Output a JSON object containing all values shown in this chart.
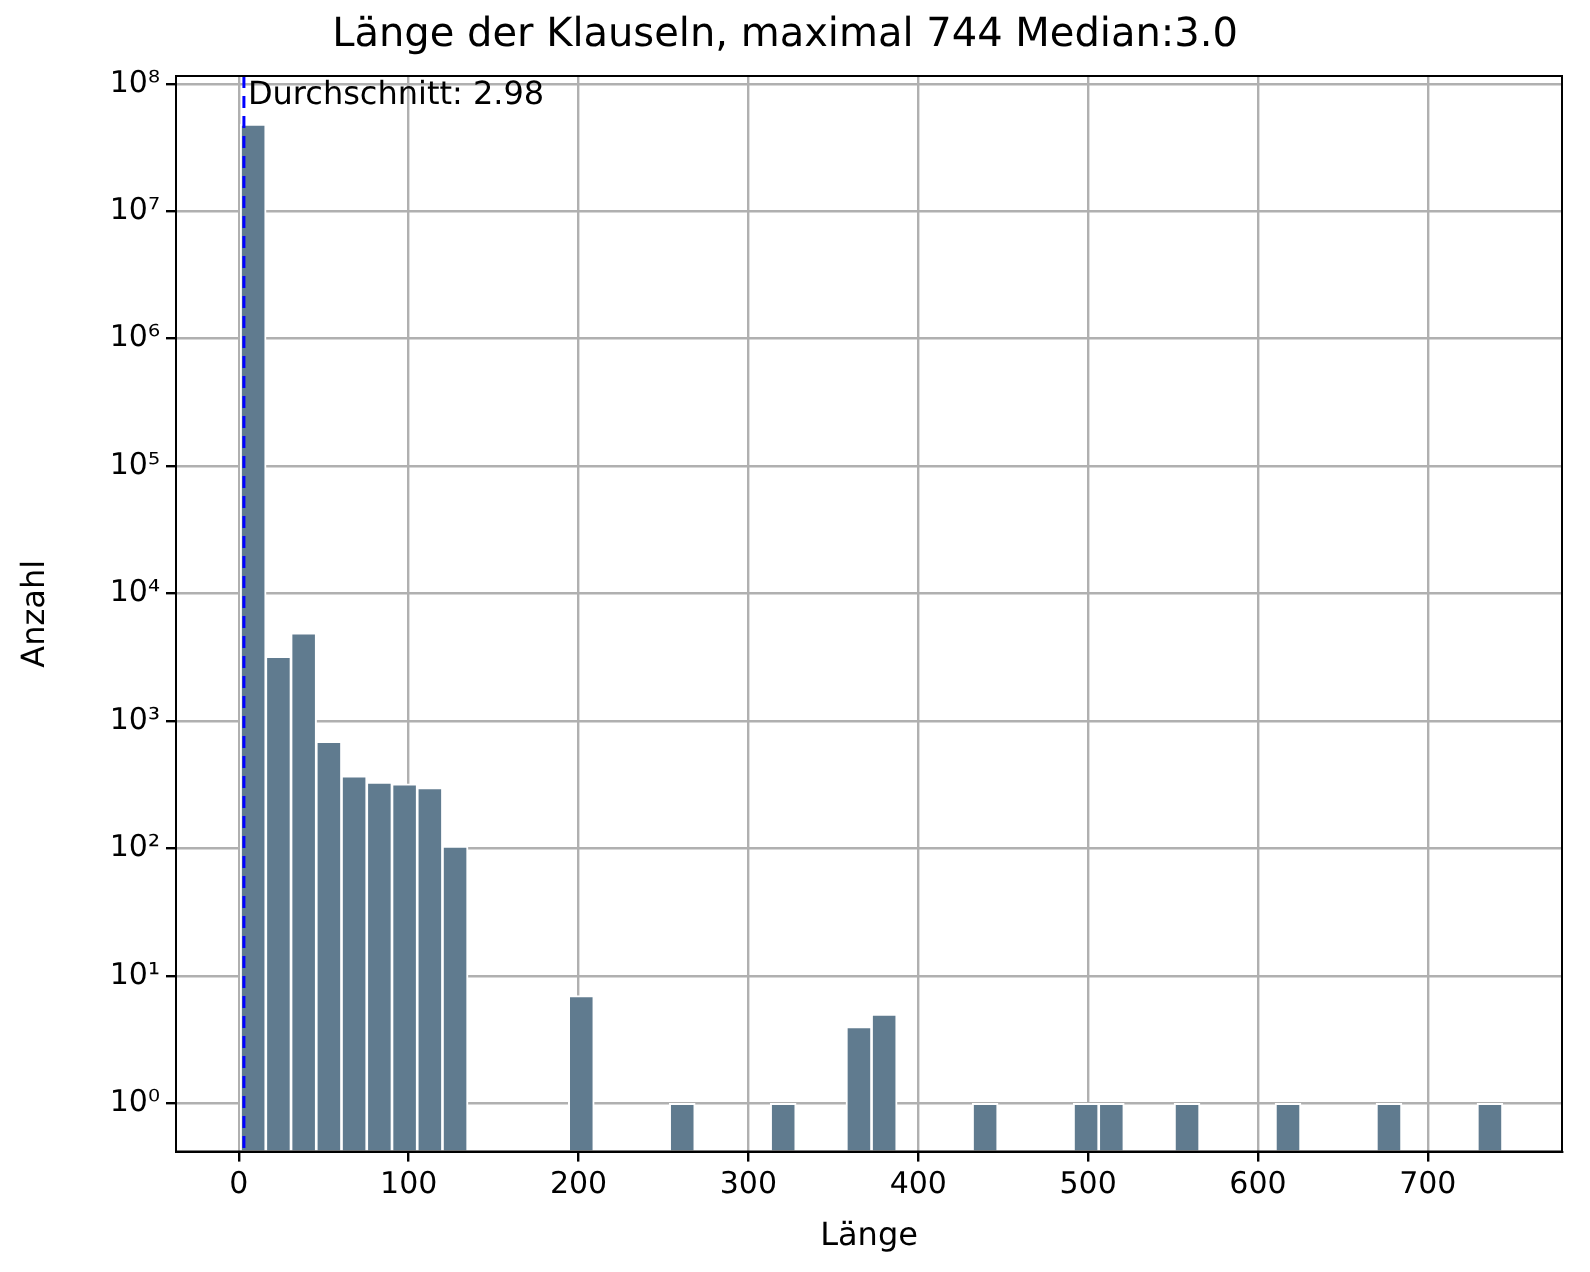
{
  "chart_data": {
    "type": "histogram",
    "title": "Länge der Klauseln, maximal 744 Median:3.0",
    "xlabel": "Länge",
    "ylabel": "Anzahl",
    "bins": [
      1,
      15.86,
      30.72,
      45.58,
      60.44,
      75.3,
      90.16,
      105.02,
      119.88,
      134.74,
      149.6,
      164.46,
      179.32,
      194.18,
      209.04,
      223.9,
      238.76,
      253.62,
      268.48,
      283.34,
      298.2,
      313.06,
      327.92,
      342.78,
      357.64,
      372.5,
      387.36,
      402.22,
      417.08,
      431.94,
      446.8,
      461.66,
      476.52,
      491.38,
      506.24,
      521.1,
      535.96,
      550.82,
      565.68,
      580.54,
      595.4,
      610.26,
      625.12,
      639.98,
      654.84,
      669.7,
      684.56,
      699.42,
      714.28,
      729.14,
      744
    ],
    "values": [
      48000000,
      3200,
      4900,
      690,
      370,
      330,
      320,
      300,
      104,
      null,
      null,
      null,
      null,
      7,
      null,
      null,
      null,
      1,
      null,
      null,
      null,
      1,
      null,
      null,
      4,
      5,
      null,
      null,
      null,
      1,
      null,
      null,
      null,
      1,
      1,
      null,
      null,
      1,
      null,
      null,
      null,
      1,
      null,
      null,
      null,
      1,
      null,
      null,
      null,
      1
    ],
    "color": "#607b8f",
    "log": "y",
    "grid": true,
    "xlim": [
      -37,
      779
    ],
    "xticks": [
      0,
      100,
      200,
      300,
      400,
      500,
      600,
      700
    ],
    "ylim": [
      0.42,
      115000000
    ],
    "yticks": [
      {
        "value": 1,
        "label": "10⁰"
      },
      {
        "value": 10,
        "label": "10¹"
      },
      {
        "value": 100,
        "label": "10²"
      },
      {
        "value": 1000,
        "label": "10³"
      },
      {
        "value": 10000,
        "label": "10⁴"
      },
      {
        "value": 100000,
        "label": "10⁵"
      },
      {
        "value": 1000000,
        "label": "10⁶"
      },
      {
        "value": 10000000,
        "label": "10⁷"
      },
      {
        "value": 100000000,
        "label": "10⁸"
      }
    ],
    "ref_lines": [
      {
        "axis": "x",
        "value": 2.98,
        "label": "Durchschnitt: 2.98",
        "color": "#0000ff",
        "line_style": "dashed"
      }
    ]
  }
}
